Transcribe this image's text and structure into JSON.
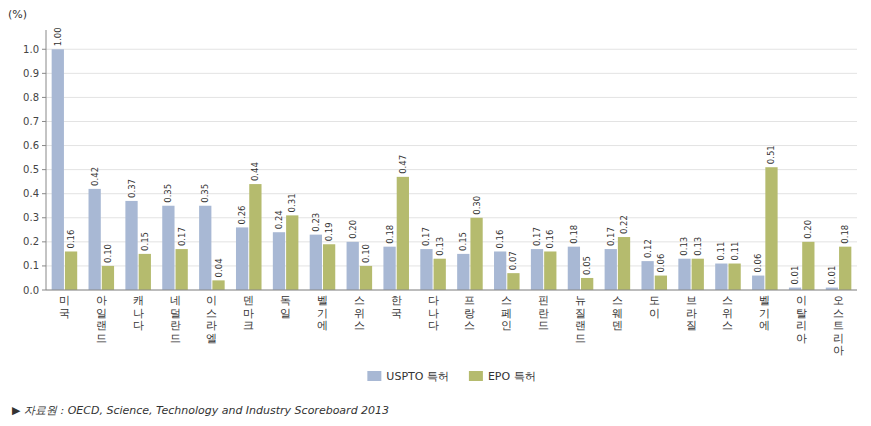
{
  "chart_data": {
    "type": "bar",
    "y_label": "(%)",
    "source": "▶ 자료원 : OECD, Science, Technology and Industry Scoreboard 2013",
    "categories": [
      "미\n국",
      "아\n일\n랜\n드",
      "캐\n나\n다",
      "네\n덜\n란\n드",
      "이\n스\n라\n엘",
      "덴\n마\n크",
      "독\n일",
      "벨\n기\n에",
      "스\n위\n스",
      "한\n국",
      "다\n나\n다",
      "프\n랑\n스",
      "스\n페\n인",
      "핀\n란\n드",
      "뉴\n질\n랜\n드",
      "스\n웨\n덴",
      "도\n이",
      "브\n라\n질",
      "스\n위\n스",
      "벨\n기\n에",
      "이\n탈\n리\n아",
      "오\n스\n트\n리\n아"
    ],
    "series": [
      {
        "name": "USPTO 특허",
        "color": "#a8b8d4",
        "values": [
          1.0,
          0.42,
          0.37,
          0.35,
          0.35,
          0.26,
          0.24,
          0.23,
          0.2,
          0.18,
          0.17,
          0.15,
          0.16,
          0.17,
          0.18,
          0.17,
          0.12,
          0.13,
          0.11,
          0.06,
          0.01,
          0.01
        ],
        "value_labels": [
          "1.00",
          "0.42",
          "0.37",
          "0.35",
          "0.35",
          "0.26",
          "0.24",
          "0.23",
          "0.20",
          "0.18",
          "0.17",
          "0.15",
          "0.16",
          "0.17",
          "0.18",
          "0.17",
          "0.12",
          "0.13",
          "0.11",
          "0.06",
          "0.01",
          "0.01"
        ]
      },
      {
        "name": "EPO 특허",
        "color": "#b5bb6e",
        "values": [
          0.16,
          0.1,
          0.15,
          0.17,
          0.04,
          0.44,
          0.31,
          0.19,
          0.1,
          0.47,
          0.13,
          0.3,
          0.07,
          0.16,
          0.05,
          0.22,
          0.06,
          0.13,
          0.11,
          0.51,
          0.2,
          0.18
        ],
        "value_labels": [
          "0.16",
          "0.10",
          "0.15",
          "0.17",
          "0.04",
          "0.44",
          "0.31",
          "0.19",
          "0.10",
          "0.47",
          "0.13",
          "0.30",
          "0.07",
          "0.16",
          "0.05",
          "0.22",
          "0.06",
          "0.13",
          "0.11",
          "0.51",
          "0.20",
          "0.18"
        ]
      }
    ],
    "ylim": [
      0,
      1.08
    ],
    "yticks": [
      {
        "value": 0.0,
        "label": "0.0"
      },
      0.1,
      0.2,
      0.3,
      0.4,
      0.5,
      0.6,
      0.7,
      0.8,
      0.9,
      {
        "value": 1.0,
        "label": "1.0"
      }
    ],
    "grid": true,
    "legend": "bottom",
    "data_labels": true
  }
}
